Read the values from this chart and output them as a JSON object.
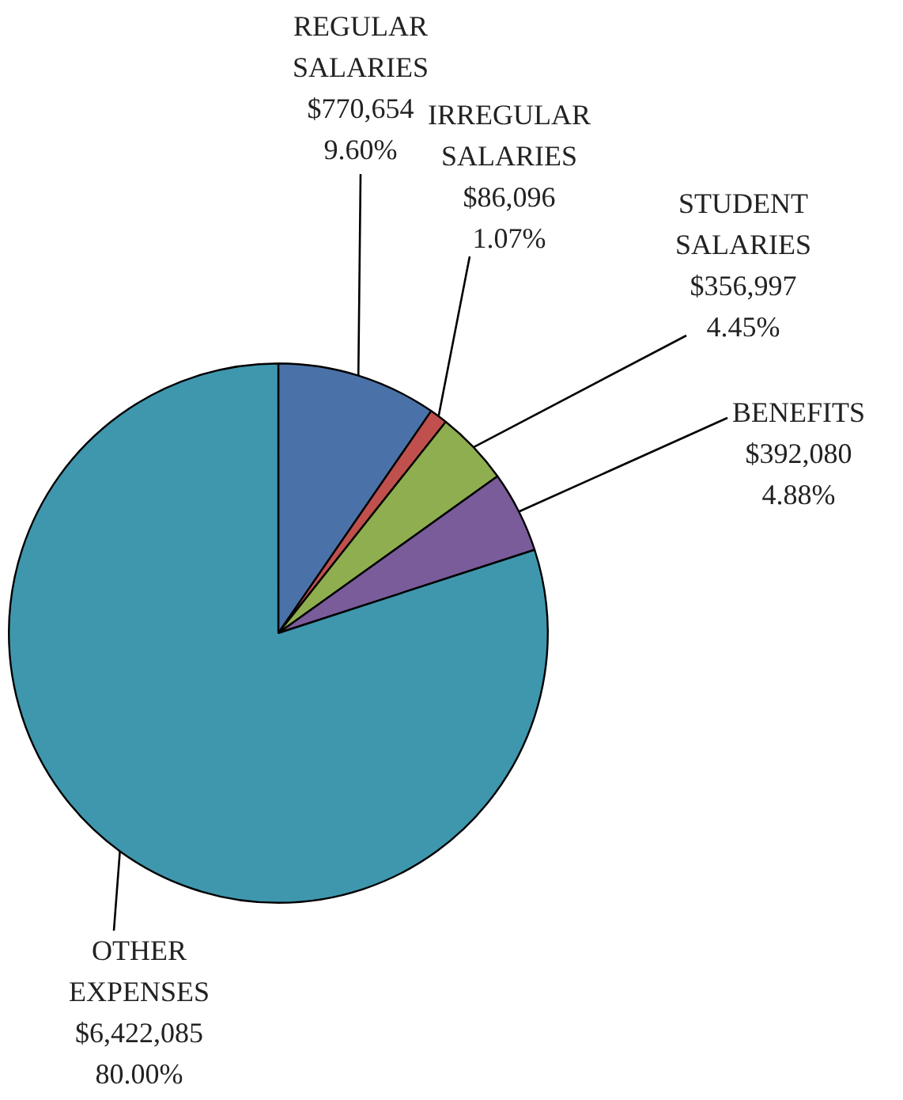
{
  "chart_data": {
    "type": "pie",
    "categories": [
      "REGULAR SALARIES",
      "IRREGULAR SALARIES",
      "STUDENT SALARIES",
      "BENEFITS",
      "OTHER EXPENSES"
    ],
    "values": [
      770654,
      86096,
      356997,
      392080,
      6422085
    ],
    "colors": [
      "#4a72a8",
      "#c0504d",
      "#8fae50",
      "#7a5c9a",
      "#3f97ae"
    ],
    "value_labels": [
      "$770,654\n9.60%",
      "$86,096\n1.07%",
      "$356,997\n4.45%",
      "$392,080\n4.88%",
      "$6,422,085\n80.00%"
    ],
    "legend": false
  }
}
